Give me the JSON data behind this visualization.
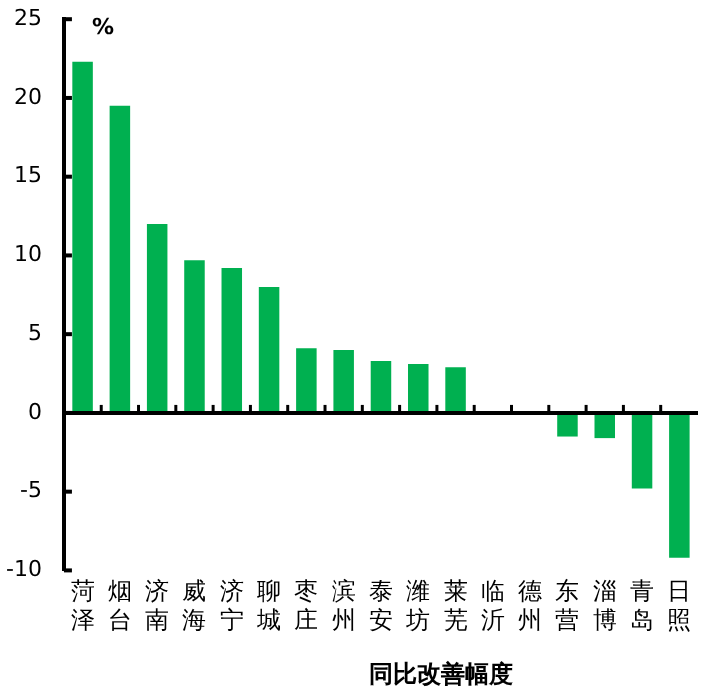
{
  "chart_data": {
    "type": "bar",
    "xlabel": "同比改善幅度",
    "ylabel": "%",
    "categories": [
      "菏泽",
      "烟台",
      "济南",
      "威海",
      "济宁",
      "聊城",
      "枣庄",
      "滨州",
      "泰安",
      "潍坊",
      "莱芜",
      "临沂",
      "德州",
      "东营",
      "淄博",
      "青岛",
      "日照"
    ],
    "values": [
      22.3,
      19.5,
      12.0,
      9.7,
      9.2,
      8.0,
      4.1,
      4.0,
      3.3,
      3.1,
      2.9,
      0,
      0,
      -1.5,
      -1.6,
      -4.8,
      -9.2
    ],
    "color": "#00b050",
    "ylim": [
      -10,
      25
    ],
    "yticks": [
      -10,
      -5,
      0,
      5,
      10,
      15,
      20,
      25
    ],
    "grid": false,
    "legend": false,
    "ref_lines": [
      {
        "axis": "y",
        "value": 0,
        "color": "#000000"
      }
    ]
  }
}
